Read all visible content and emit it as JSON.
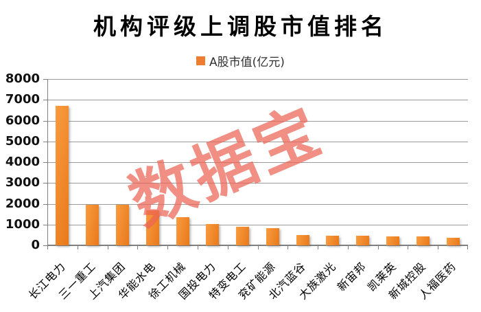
{
  "chart": {
    "title": "机构评级上调股市值排名",
    "legend_label": "A股市值(亿元)",
    "watermark": "数据宝",
    "colors": {
      "bar_light": "#F99C3F",
      "bar_dark": "#E8791B",
      "legend_swatch": "#ED7D31",
      "watermark": "rgba(235,100,85,0.72)",
      "grid": "#9a9a9a",
      "axis": "#7f7f7f",
      "title_text": "#000000",
      "tick_text": "#111111"
    }
  },
  "chart_data": {
    "type": "bar",
    "title": "机构评级上调股市值排名",
    "legend": [
      "A股市值(亿元)"
    ],
    "legend_position": "top",
    "categories": [
      "长江电力",
      "三一重工",
      "上汽集团",
      "华能水电",
      "徐工机械",
      "国投电力",
      "特变电工",
      "兖矿能源",
      "北汽蓝谷",
      "大族激光",
      "新宙邦",
      "凯莱英",
      "新城控股",
      "人福医药"
    ],
    "values": [
      6700,
      1960,
      1950,
      1700,
      1350,
      1030,
      900,
      830,
      480,
      460,
      450,
      440,
      430,
      380
    ],
    "xlabel": "",
    "ylabel": "",
    "ylim": [
      0,
      8000
    ],
    "yticks": [
      0,
      1000,
      2000,
      3000,
      4000,
      5000,
      6000,
      7000,
      8000
    ],
    "grid": true,
    "annotations": [
      "数据宝"
    ]
  }
}
